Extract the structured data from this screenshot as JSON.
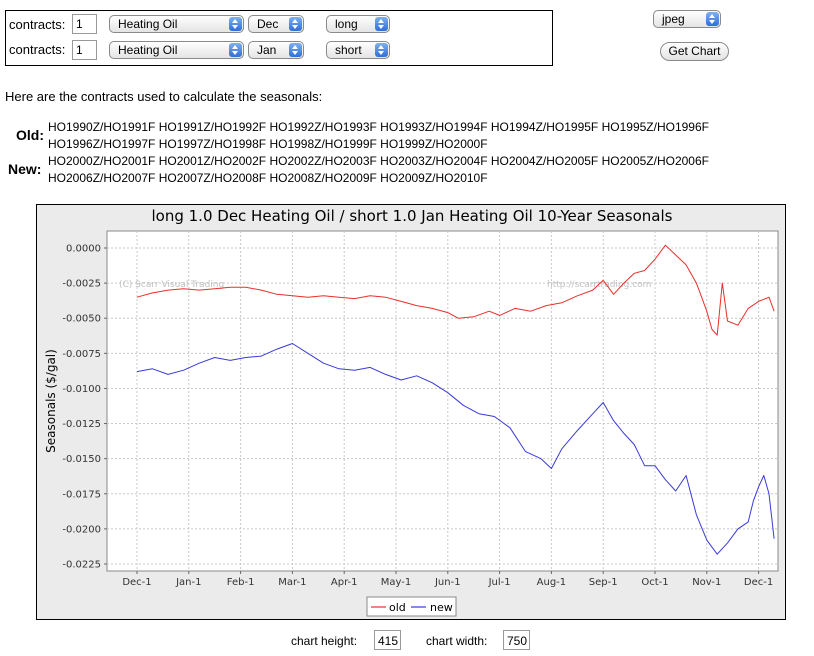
{
  "form": {
    "rows": [
      {
        "label": "contracts:",
        "qty": "1",
        "commodity": "Heating Oil",
        "month": "Dec",
        "side": "long"
      },
      {
        "label": "contracts:",
        "qty": "1",
        "commodity": "Heating Oil",
        "month": "Jan",
        "side": "short"
      }
    ],
    "format": "jpeg",
    "get_chart_label": "Get Chart"
  },
  "contracts": {
    "intro": "Here are the contracts used to calculate the seasonals:",
    "old_label": "Old:",
    "old_line1": "HO1990Z/HO1991F HO1991Z/HO1992F HO1992Z/HO1993F HO1993Z/HO1994F HO1994Z/HO1995F HO1995Z/HO1996F",
    "old_line2": "HO1996Z/HO1997F HO1997Z/HO1998F HO1998Z/HO1999F HO1999Z/HO2000F",
    "new_label": "New:",
    "new_line1": "HO2000Z/HO2001F HO2001Z/HO2002F HO2002Z/HO2003F HO2003Z/HO2004F HO2004Z/HO2005F HO2005Z/HO2006F",
    "new_line2": "HO2006Z/HO2007F HO2007Z/HO2008F HO2008Z/HO2009F HO2009Z/HO2010F"
  },
  "footer": {
    "height_label": "chart height:",
    "height_value": "415",
    "width_label": "chart width:",
    "width_value": "750"
  },
  "chart_data": {
    "type": "line",
    "title": "long 1.0 Dec Heating Oil / short 1.0 Jan Heating Oil 10-Year Seasonals",
    "ylabel": "Seasonals ($/gal)",
    "xlabel": "",
    "ylim": [
      -0.0225,
      0.001
    ],
    "yticks": [
      "0.0000",
      "-0.0025",
      "-0.0050",
      "-0.0075",
      "-0.0100",
      "-0.0125",
      "-0.0150",
      "-0.0175",
      "-0.0200",
      "-0.0225"
    ],
    "xticks": [
      "Dec-1",
      "Jan-1",
      "Feb-1",
      "Mar-1",
      "Apr-1",
      "May-1",
      "Jun-1",
      "Jul-1",
      "Aug-1",
      "Sep-1",
      "Oct-1",
      "Nov-1",
      "Dec-1"
    ],
    "watermark_left": "(C) Scarr Visual Trading",
    "watermark_right": "http://scarrtrading.com",
    "grid": true,
    "legend_position": "bottom",
    "colors": {
      "old": "#e8302a",
      "new": "#3a3ad8"
    },
    "series": [
      {
        "name": "old",
        "x": [
          0,
          0.3,
          0.6,
          0.9,
          1.2,
          1.5,
          1.8,
          2.1,
          2.4,
          2.7,
          3.0,
          3.3,
          3.6,
          3.9,
          4.2,
          4.5,
          4.8,
          5.1,
          5.4,
          5.7,
          6.0,
          6.2,
          6.5,
          6.8,
          7.0,
          7.3,
          7.6,
          7.9,
          8.2,
          8.5,
          8.8,
          9.0,
          9.2,
          9.4,
          9.6,
          9.8,
          10.0,
          10.2,
          10.4,
          10.6,
          10.8,
          11.0,
          11.1,
          11.2,
          11.3,
          11.4,
          11.6,
          11.8,
          12.0,
          12.2,
          12.3
        ],
        "values": [
          -0.0035,
          -0.0032,
          -0.003,
          -0.0029,
          -0.003,
          -0.0029,
          -0.0028,
          -0.0028,
          -0.003,
          -0.0033,
          -0.0034,
          -0.0035,
          -0.0034,
          -0.0035,
          -0.0036,
          -0.0034,
          -0.0035,
          -0.0038,
          -0.0041,
          -0.0043,
          -0.0046,
          -0.005,
          -0.0049,
          -0.0045,
          -0.0048,
          -0.0043,
          -0.0045,
          -0.0041,
          -0.0039,
          -0.0034,
          -0.003,
          -0.0023,
          -0.0033,
          -0.0025,
          -0.0018,
          -0.0016,
          -0.0008,
          0.0002,
          -0.0005,
          -0.0012,
          -0.0025,
          -0.0045,
          -0.0058,
          -0.0062,
          -0.0025,
          -0.0052,
          -0.0055,
          -0.0043,
          -0.0038,
          -0.0035,
          -0.0045
        ]
      },
      {
        "name": "new",
        "x": [
          0,
          0.3,
          0.6,
          0.9,
          1.2,
          1.5,
          1.8,
          2.1,
          2.4,
          2.7,
          3.0,
          3.3,
          3.6,
          3.9,
          4.2,
          4.5,
          4.8,
          5.1,
          5.4,
          5.7,
          6.0,
          6.3,
          6.6,
          6.9,
          7.2,
          7.5,
          7.8,
          8.0,
          8.2,
          8.5,
          8.8,
          9.0,
          9.2,
          9.4,
          9.6,
          9.8,
          10.0,
          10.2,
          10.4,
          10.6,
          10.8,
          11.0,
          11.2,
          11.4,
          11.6,
          11.8,
          11.9,
          12.0,
          12.1,
          12.2,
          12.3
        ],
        "values": [
          -0.0088,
          -0.0086,
          -0.009,
          -0.0087,
          -0.0082,
          -0.0078,
          -0.008,
          -0.0078,
          -0.0077,
          -0.0072,
          -0.0068,
          -0.0075,
          -0.0082,
          -0.0086,
          -0.0087,
          -0.0085,
          -0.009,
          -0.0094,
          -0.0091,
          -0.0096,
          -0.0103,
          -0.0112,
          -0.0118,
          -0.012,
          -0.0128,
          -0.0145,
          -0.015,
          -0.0157,
          -0.0143,
          -0.013,
          -0.0118,
          -0.011,
          -0.0123,
          -0.0132,
          -0.014,
          -0.0155,
          -0.0155,
          -0.0165,
          -0.0173,
          -0.0162,
          -0.019,
          -0.0208,
          -0.0218,
          -0.021,
          -0.02,
          -0.0195,
          -0.018,
          -0.017,
          -0.0162,
          -0.0175,
          -0.0207
        ]
      }
    ]
  }
}
